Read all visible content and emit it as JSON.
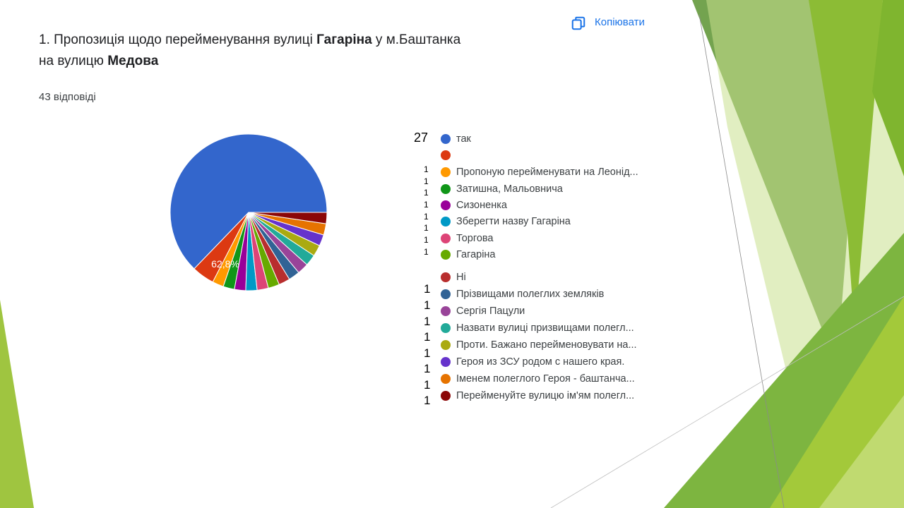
{
  "question": {
    "number": "1.",
    "text_part1": "Пропозиція щодо перейменування вулиці",
    "old_name": "Гагаріна",
    "text_part2": "у м.Баштанка",
    "text_part3": "на вулицю",
    "new_name": "Медова"
  },
  "responses_label": "43 відповіді",
  "copy_button": {
    "label": "Копіювати",
    "icon": "copy-icon"
  },
  "colors": {
    "copy_accent": "#1a73e8",
    "slide_green_light": "#a6c845",
    "slide_green_dark": "#5a8a3a"
  },
  "chart_data": {
    "type": "pie",
    "total": 43,
    "label_shown": "62,8%",
    "start_angle_deg": 90,
    "slices": [
      {
        "label": "так",
        "value": 27,
        "count_text": "27",
        "color": "#3366cc"
      },
      {
        "label": "",
        "value": 2,
        "count_text": "",
        "color": "#dc3912"
      },
      {
        "label": "Пропоную перейменувати на Леонід...",
        "value": 1,
        "count_text": "1",
        "color": "#ff9900"
      },
      {
        "label": "Затишна, Мальовнича",
        "value": 1,
        "count_text": "1",
        "color": "#109618"
      },
      {
        "label": "Сизоненка",
        "value": 1,
        "count_text": "1",
        "color": "#990099"
      },
      {
        "label": "Зберегти назву Гагаріна",
        "value": 1,
        "count_text": "1",
        "color": "#0099c6"
      },
      {
        "label": "Торгова",
        "value": 1,
        "count_text": "1",
        "color": "#dd4477"
      },
      {
        "label": "Гагаріна",
        "value": 1,
        "count_text": "1",
        "color": "#66aa00"
      },
      {
        "label": "Ні",
        "value": 1,
        "count_text": "1",
        "color": "#b82e2e"
      },
      {
        "label": "Прізвищами полеглих земляків",
        "value": 1,
        "count_text": "1",
        "color": "#316395"
      },
      {
        "label": "Сергія Пацули",
        "value": 1,
        "count_text": "1",
        "color": "#994499"
      },
      {
        "label": "Назвати вулиці призвищами полегл...",
        "value": 1,
        "count_text": "1",
        "color": "#22aa99"
      },
      {
        "label": "Проти. Бажано перейменовувати на...",
        "value": 1,
        "count_text": "1",
        "color": "#aaaa11"
      },
      {
        "label": "Героя из ЗСУ родом с нашего края.",
        "value": 1,
        "count_text": "1",
        "color": "#6633cc"
      },
      {
        "label": "Іменем полеглого Героя - баштанча...",
        "value": 1,
        "count_text": "1",
        "color": "#e67300"
      },
      {
        "label": "Перейменуйте вулицю ім'ям полегл...",
        "value": 1,
        "count_text": "1",
        "color": "#8b0707"
      }
    ]
  }
}
